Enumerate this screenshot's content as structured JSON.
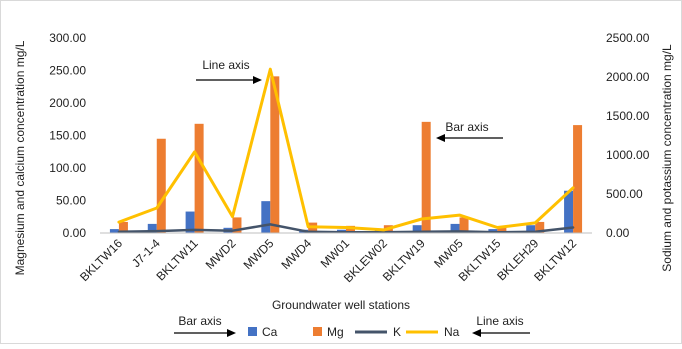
{
  "chart_data": {
    "type": "bar+line",
    "categories": [
      "BKLTW16",
      "J7-1-4",
      "BKLTW11",
      "MWD2",
      "MWD5",
      "MWD4",
      "MW01",
      "BKLEW02",
      "BKLTW19",
      "MW05",
      "BKLTW15",
      "BKLEH29",
      "BKLTW12"
    ],
    "series": [
      {
        "name": "Ca",
        "type": "bar",
        "axis": "left",
        "color": "#4472C4",
        "values": [
          6,
          14,
          33,
          8,
          49,
          5,
          5,
          5,
          12,
          14,
          6,
          12,
          65
        ]
      },
      {
        "name": "Mg",
        "type": "bar",
        "axis": "left",
        "color": "#ED7D31",
        "values": [
          17,
          145,
          168,
          24,
          241,
          16,
          11,
          12,
          171,
          24,
          10,
          17,
          166
        ]
      },
      {
        "name": "K",
        "type": "line",
        "axis": "right",
        "color": "#44546A",
        "values": [
          15,
          25,
          40,
          30,
          110,
          15,
          10,
          10,
          15,
          20,
          10,
          15,
          70
        ]
      },
      {
        "name": "Na",
        "type": "line",
        "axis": "right",
        "color": "#FFC000",
        "values": [
          140,
          320,
          1040,
          210,
          2100,
          80,
          70,
          40,
          180,
          230,
          70,
          130,
          580
        ]
      }
    ],
    "xlabel": "Groundwater well stations",
    "ylabel": "Magnesium and calcium concentration mg/L",
    "y2label": "Sodium and potassium concentration mg/L",
    "ylim": [
      0,
      300
    ],
    "y2lim": [
      0,
      2500
    ],
    "yticks": [
      "0.00",
      "50.00",
      "100.00",
      "150.00",
      "200.00",
      "250.00",
      "300.00"
    ],
    "y2ticks": [
      "0.00",
      "500.00",
      "1000.00",
      "1500.00",
      "2000.00",
      "2500.00"
    ],
    "grid": false,
    "legend_position": "bottom",
    "annotations": {
      "line_axis_top": "Line axis",
      "bar_axis_top": "Bar axis",
      "bar_axis_legend": "Bar axis",
      "line_axis_legend": "Line axis"
    }
  }
}
